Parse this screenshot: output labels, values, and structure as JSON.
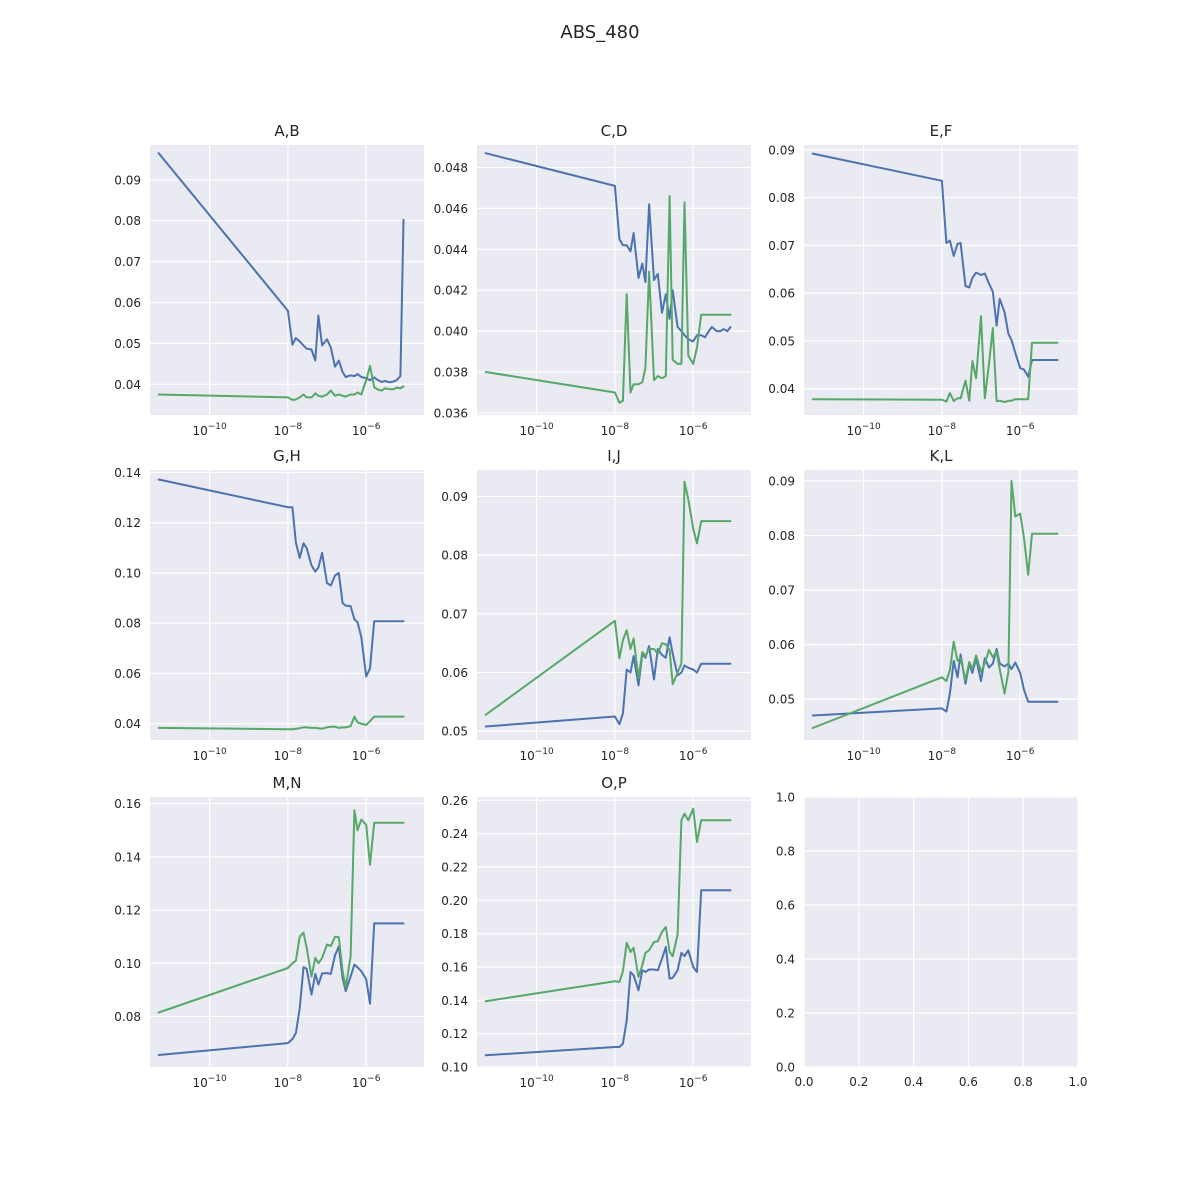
{
  "figure": {
    "title": "ABS_480"
  },
  "colors": {
    "series_1": "#4c72b0",
    "series_2": "#55a868",
    "background": "#eaeaf2"
  },
  "chart_data": [
    {
      "type": "line",
      "title": "A,B",
      "xscale": "log",
      "xlim": [
        3e-12,
        3e-05
      ],
      "xticks": [
        1e-10,
        1e-08,
        1e-06
      ],
      "ylim": [
        0.0325,
        0.0985
      ],
      "yticks": [
        0.04,
        0.05,
        0.06,
        0.07,
        0.08,
        0.09
      ],
      "x": [
        5e-12,
        1e-08,
        1.3e-08,
        1.6e-08,
        2e-08,
        2.5e-08,
        3e-08,
        4e-08,
        5e-08,
        6e-08,
        7.5e-08,
        1e-07,
        1.25e-07,
        1.6e-07,
        2e-07,
        2.5e-07,
        3e-07,
        4e-07,
        5e-07,
        6e-07,
        7.5e-07,
        1e-06,
        1.25e-06,
        1.6e-06,
        2e-06,
        2.5e-06,
        3e-06,
        4e-06,
        5e-06,
        6e-06,
        7.5e-06,
        9e-06
      ],
      "series": [
        {
          "values": [
            0.0965,
            0.058,
            0.0497,
            0.0513,
            0.0505,
            0.0495,
            0.0487,
            0.0485,
            0.0458,
            0.0568,
            0.0495,
            0.051,
            0.049,
            0.0443,
            0.0458,
            0.043,
            0.0418,
            0.0422,
            0.042,
            0.0425,
            0.0418,
            0.0415,
            0.041,
            0.0417,
            0.041,
            0.0406,
            0.0408,
            0.0405,
            0.0407,
            0.041,
            0.042,
            0.0802
          ]
        },
        {
          "values": [
            0.0375,
            0.0368,
            0.0362,
            0.0363,
            0.0368,
            0.0375,
            0.0368,
            0.0368,
            0.0378,
            0.0372,
            0.037,
            0.0375,
            0.0385,
            0.0372,
            0.0375,
            0.0372,
            0.037,
            0.0375,
            0.0375,
            0.038,
            0.0375,
            0.041,
            0.0445,
            0.0393,
            0.0387,
            0.0385,
            0.039,
            0.0388,
            0.0388,
            0.0392,
            0.039,
            0.0395
          ]
        }
      ]
    },
    {
      "type": "line",
      "title": "C,D",
      "xscale": "log",
      "xlim": [
        3e-12,
        3e-05
      ],
      "xticks": [
        1e-10,
        1e-08,
        1e-06
      ],
      "ylim": [
        0.0359,
        0.0491
      ],
      "yticks": [
        0.036,
        0.038,
        0.04,
        0.042,
        0.044,
        0.046,
        0.048
      ],
      "x": [
        5e-12,
        1e-08,
        1.3e-08,
        1.6e-08,
        2e-08,
        2.5e-08,
        3e-08,
        4e-08,
        5e-08,
        6e-08,
        7.5e-08,
        1e-07,
        1.25e-07,
        1.6e-07,
        2e-07,
        2.5e-07,
        3e-07,
        4e-07,
        5e-07,
        6e-07,
        7.5e-07,
        1e-06,
        1.25e-06,
        1.6e-06,
        2e-06,
        2.5e-06,
        3e-06,
        4e-06,
        5e-06,
        6e-06,
        7.5e-06,
        9e-06
      ],
      "series": [
        {
          "values": [
            0.0487,
            0.0471,
            0.0445,
            0.0442,
            0.0442,
            0.0439,
            0.0448,
            0.0426,
            0.0433,
            0.0424,
            0.0462,
            0.0425,
            0.0428,
            0.0409,
            0.0418,
            0.0406,
            0.042,
            0.0402,
            0.04,
            0.0398,
            0.0396,
            0.0395,
            0.0398,
            0.0398,
            0.0397,
            0.04,
            0.0402,
            0.04,
            0.04,
            0.0401,
            0.04,
            0.0402
          ]
        },
        {
          "values": [
            0.038,
            0.037,
            0.0365,
            0.0366,
            0.0418,
            0.037,
            0.0374,
            0.0374,
            0.0375,
            0.0382,
            0.0429,
            0.0376,
            0.0378,
            0.0377,
            0.0378,
            0.0466,
            0.0386,
            0.0384,
            0.0384,
            0.0463,
            0.0388,
            0.0384,
            0.0392,
            0.0408,
            0.0408,
            0.0408,
            0.0408,
            0.0408,
            0.0408,
            0.0408,
            0.0408,
            0.0408
          ]
        }
      ]
    },
    {
      "type": "line",
      "title": "E,F",
      "xscale": "log",
      "xlim": [
        3e-12,
        3e-05
      ],
      "xticks": [
        1e-10,
        1e-08,
        1e-06
      ],
      "ylim": [
        0.0345,
        0.091
      ],
      "yticks": [
        0.04,
        0.05,
        0.06,
        0.07,
        0.08,
        0.09
      ],
      "x": [
        5e-12,
        1e-08,
        1.3e-08,
        1.6e-08,
        2e-08,
        2.5e-08,
        3e-08,
        4e-08,
        5e-08,
        6e-08,
        7.5e-08,
        1e-07,
        1.25e-07,
        1.6e-07,
        2e-07,
        2.5e-07,
        3e-07,
        4e-07,
        5e-07,
        6e-07,
        7.5e-07,
        1e-06,
        1.25e-06,
        1.6e-06,
        2e-06,
        2.5e-06,
        3e-06,
        4e-06,
        5e-06,
        6e-06,
        7.5e-06,
        9e-06
      ],
      "series": [
        {
          "values": [
            0.0892,
            0.0835,
            0.0705,
            0.071,
            0.0678,
            0.0703,
            0.0705,
            0.0615,
            0.0612,
            0.0632,
            0.0643,
            0.0638,
            0.0641,
            0.062,
            0.0603,
            0.0532,
            0.0588,
            0.056,
            0.0515,
            0.0502,
            0.0475,
            0.0443,
            0.044,
            0.0425,
            0.046,
            0.046,
            0.046,
            0.046,
            0.046,
            0.046,
            0.046,
            0.046
          ]
        },
        {
          "values": [
            0.0378,
            0.0377,
            0.0373,
            0.0391,
            0.0374,
            0.038,
            0.038,
            0.0417,
            0.0375,
            0.0458,
            0.0422,
            0.0552,
            0.038,
            0.0452,
            0.0527,
            0.0374,
            0.0375,
            0.0372,
            0.0375,
            0.0375,
            0.0378,
            0.0378,
            0.0378,
            0.0378,
            0.0496,
            0.0496,
            0.0496,
            0.0496,
            0.0496,
            0.0496,
            0.0496,
            0.0496
          ]
        }
      ]
    },
    {
      "type": "line",
      "title": "G,H",
      "xscale": "log",
      "xlim": [
        3e-12,
        3e-05
      ],
      "xticks": [
        1e-10,
        1e-08,
        1e-06
      ],
      "ylim": [
        0.0335,
        0.141
      ],
      "yticks": [
        0.04,
        0.06,
        0.08,
        0.1,
        0.12,
        0.14
      ],
      "x": [
        5e-12,
        1e-08,
        1.3e-08,
        1.6e-08,
        2e-08,
        2.5e-08,
        3e-08,
        4e-08,
        5e-08,
        6e-08,
        7.5e-08,
        1e-07,
        1.25e-07,
        1.6e-07,
        2e-07,
        2.5e-07,
        3e-07,
        4e-07,
        5e-07,
        6e-07,
        7.5e-07,
        1e-06,
        1.25e-06,
        1.6e-06,
        2e-06,
        2.5e-06,
        3e-06,
        4e-06,
        5e-06,
        6e-06,
        7.5e-06,
        9e-06
      ],
      "series": [
        {
          "values": [
            0.1372,
            0.1262,
            0.1262,
            0.112,
            0.106,
            0.1118,
            0.11,
            0.103,
            0.1005,
            0.1022,
            0.108,
            0.096,
            0.095,
            0.099,
            0.1,
            0.088,
            0.087,
            0.0868,
            0.0815,
            0.0805,
            0.0745,
            0.0588,
            0.062,
            0.0808,
            0.0808,
            0.0808,
            0.0808,
            0.0808,
            0.0808,
            0.0808,
            0.0808,
            0.0808
          ]
        },
        {
          "values": [
            0.0383,
            0.0378,
            0.0378,
            0.038,
            0.0382,
            0.0385,
            0.0385,
            0.0383,
            0.0383,
            0.0382,
            0.038,
            0.0385,
            0.0388,
            0.0388,
            0.0383,
            0.0385,
            0.0385,
            0.039,
            0.0428,
            0.0405,
            0.04,
            0.0395,
            0.041,
            0.0428,
            0.0428,
            0.0428,
            0.0428,
            0.0428,
            0.0428,
            0.0428,
            0.0428,
            0.0428
          ]
        }
      ]
    },
    {
      "type": "line",
      "title": "I,J",
      "xscale": "log",
      "xlim": [
        3e-12,
        3e-05
      ],
      "xticks": [
        1e-10,
        1e-08,
        1e-06
      ],
      "ylim": [
        0.0485,
        0.0945
      ],
      "yticks": [
        0.05,
        0.06,
        0.07,
        0.08,
        0.09
      ],
      "x": [
        5e-12,
        1e-08,
        1.3e-08,
        1.6e-08,
        2e-08,
        2.5e-08,
        3e-08,
        4e-08,
        5e-08,
        6e-08,
        7.5e-08,
        1e-07,
        1.25e-07,
        1.6e-07,
        2e-07,
        2.5e-07,
        3e-07,
        4e-07,
        5e-07,
        6e-07,
        7.5e-07,
        1e-06,
        1.25e-06,
        1.6e-06,
        2e-06,
        2.5e-06,
        3e-06,
        4e-06,
        5e-06,
        6e-06,
        7.5e-06,
        9e-06
      ],
      "series": [
        {
          "values": [
            0.0508,
            0.0525,
            0.0512,
            0.053,
            0.0605,
            0.06,
            0.0628,
            0.0578,
            0.0632,
            0.0625,
            0.0645,
            0.0588,
            0.064,
            0.063,
            0.0625,
            0.066,
            0.0632,
            0.0595,
            0.06,
            0.0612,
            0.0608,
            0.0605,
            0.06,
            0.0615,
            0.0615,
            0.0615,
            0.0615,
            0.0615,
            0.0615,
            0.0615,
            0.0615,
            0.0615
          ]
        },
        {
          "values": [
            0.0528,
            0.0688,
            0.0624,
            0.0655,
            0.0672,
            0.064,
            0.0658,
            0.059,
            0.0635,
            0.0628,
            0.064,
            0.064,
            0.0632,
            0.065,
            0.0648,
            0.0638,
            0.058,
            0.06,
            0.0615,
            0.0925,
            0.0895,
            0.0845,
            0.082,
            0.0858,
            0.0858,
            0.0858,
            0.0858,
            0.0858,
            0.0858,
            0.0858,
            0.0858,
            0.0858
          ]
        }
      ]
    },
    {
      "type": "line",
      "title": "K,L",
      "xscale": "log",
      "xlim": [
        3e-12,
        3e-05
      ],
      "xticks": [
        1e-10,
        1e-08,
        1e-06
      ],
      "ylim": [
        0.0425,
        0.092
      ],
      "yticks": [
        0.05,
        0.06,
        0.07,
        0.08,
        0.09
      ],
      "x": [
        5e-12,
        1e-08,
        1.3e-08,
        1.6e-08,
        2e-08,
        2.5e-08,
        3e-08,
        4e-08,
        5e-08,
        6e-08,
        7.5e-08,
        1e-07,
        1.25e-07,
        1.6e-07,
        2e-07,
        2.5e-07,
        3e-07,
        4e-07,
        5e-07,
        6e-07,
        7.5e-07,
        1e-06,
        1.25e-06,
        1.6e-06,
        2e-06,
        2.5e-06,
        3e-06,
        4e-06,
        5e-06,
        6e-06,
        7.5e-06,
        9e-06
      ],
      "series": [
        {
          "values": [
            0.047,
            0.0483,
            0.0477,
            0.051,
            0.057,
            0.054,
            0.0582,
            0.0528,
            0.0565,
            0.0548,
            0.0575,
            0.0533,
            0.0575,
            0.0558,
            0.0565,
            0.0592,
            0.0565,
            0.056,
            0.0565,
            0.0555,
            0.0567,
            0.0548,
            0.0517,
            0.0495,
            0.0495,
            0.0495,
            0.0495,
            0.0495,
            0.0495,
            0.0495,
            0.0495,
            0.0495
          ]
        },
        {
          "values": [
            0.0447,
            0.054,
            0.0533,
            0.0553,
            0.0605,
            0.057,
            0.0575,
            0.0535,
            0.0568,
            0.0555,
            0.058,
            0.055,
            0.0565,
            0.059,
            0.0577,
            0.0587,
            0.0555,
            0.051,
            0.055,
            0.09,
            0.0835,
            0.084,
            0.0795,
            0.0728,
            0.0803,
            0.0803,
            0.0803,
            0.0803,
            0.0803,
            0.0803,
            0.0803,
            0.0803
          ]
        }
      ]
    },
    {
      "type": "line",
      "title": "M,N",
      "xscale": "log",
      "xlim": [
        3e-12,
        3e-05
      ],
      "xticks": [
        1e-10,
        1e-08,
        1e-06
      ],
      "ylim": [
        0.061,
        0.1625
      ],
      "yticks": [
        0.08,
        0.1,
        0.12,
        0.14,
        0.16
      ],
      "x": [
        5e-12,
        1e-08,
        1.3e-08,
        1.6e-08,
        2e-08,
        2.5e-08,
        3e-08,
        4e-08,
        5e-08,
        6e-08,
        7.5e-08,
        1e-07,
        1.25e-07,
        1.6e-07,
        2e-07,
        2.5e-07,
        3e-07,
        4e-07,
        5e-07,
        6e-07,
        7.5e-07,
        1e-06,
        1.25e-06,
        1.6e-06,
        2e-06,
        2.5e-06,
        3e-06,
        4e-06,
        5e-06,
        6e-06,
        7.5e-06,
        9e-06
      ],
      "series": [
        {
          "values": [
            0.0655,
            0.07,
            0.0715,
            0.0738,
            0.083,
            0.0985,
            0.098,
            0.0882,
            0.096,
            0.092,
            0.0962,
            0.0963,
            0.096,
            0.103,
            0.1063,
            0.0945,
            0.0895,
            0.095,
            0.0995,
            0.0985,
            0.097,
            0.094,
            0.0848,
            0.115,
            0.115,
            0.115,
            0.115,
            0.115,
            0.115,
            0.115,
            0.115,
            0.115
          ]
        },
        {
          "values": [
            0.0815,
            0.0982,
            0.1,
            0.101,
            0.11,
            0.1115,
            0.106,
            0.095,
            0.102,
            0.1,
            0.102,
            0.107,
            0.1065,
            0.11,
            0.1098,
            0.097,
            0.091,
            0.1025,
            0.1575,
            0.15,
            0.154,
            0.152,
            0.137,
            0.1528,
            0.1528,
            0.1528,
            0.1528,
            0.1528,
            0.1528,
            0.1528,
            0.1528,
            0.1528
          ]
        }
      ]
    },
    {
      "type": "line",
      "title": "O,P",
      "xscale": "log",
      "xlim": [
        3e-12,
        3e-05
      ],
      "xticks": [
        1e-10,
        1e-08,
        1e-06
      ],
      "ylim": [
        0.1,
        0.262
      ],
      "yticks": [
        0.1,
        0.12,
        0.14,
        0.16,
        0.18,
        0.2,
        0.22,
        0.24,
        0.26
      ],
      "x": [
        5e-12,
        1e-08,
        1.3e-08,
        1.6e-08,
        2e-08,
        2.5e-08,
        3e-08,
        4e-08,
        5e-08,
        6e-08,
        7.5e-08,
        1e-07,
        1.25e-07,
        1.6e-07,
        2e-07,
        2.5e-07,
        3e-07,
        4e-07,
        5e-07,
        6e-07,
        7.5e-07,
        1e-06,
        1.25e-06,
        1.6e-06,
        2e-06,
        2.5e-06,
        3e-06,
        4e-06,
        5e-06,
        6e-06,
        7.5e-06,
        9e-06
      ],
      "series": [
        {
          "values": [
            0.107,
            0.112,
            0.112,
            0.114,
            0.128,
            0.157,
            0.155,
            0.146,
            0.158,
            0.157,
            0.1585,
            0.1585,
            0.158,
            0.165,
            0.172,
            0.153,
            0.1535,
            0.158,
            0.1685,
            0.1665,
            0.17,
            0.16,
            0.157,
            0.206,
            0.206,
            0.206,
            0.206,
            0.206,
            0.206,
            0.206,
            0.206,
            0.206
          ]
        },
        {
          "values": [
            0.1395,
            0.1515,
            0.151,
            0.1575,
            0.1745,
            0.169,
            0.1715,
            0.154,
            0.161,
            0.1685,
            0.17,
            0.175,
            0.1755,
            0.181,
            0.184,
            0.169,
            0.1665,
            0.1795,
            0.248,
            0.252,
            0.248,
            0.255,
            0.235,
            0.248,
            0.248,
            0.248,
            0.248,
            0.248,
            0.248,
            0.248,
            0.248,
            0.248
          ]
        }
      ]
    },
    {
      "type": "line",
      "title": "",
      "xscale": "linear",
      "xlim": [
        0,
        1
      ],
      "xticks": [
        0.0,
        0.2,
        0.4,
        0.6,
        0.8,
        1.0
      ],
      "ylim": [
        0,
        1
      ],
      "yticks": [
        0.0,
        0.2,
        0.4,
        0.6,
        0.8,
        1.0
      ],
      "x": [],
      "series": []
    }
  ]
}
